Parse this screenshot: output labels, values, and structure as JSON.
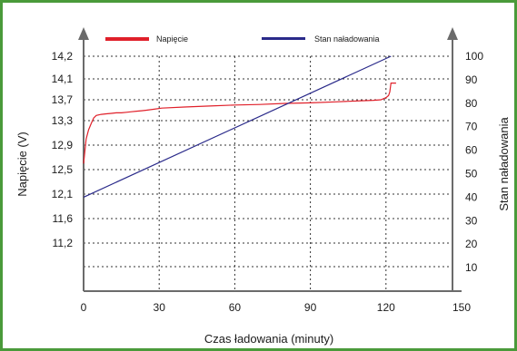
{
  "chart_data": {
    "type": "line",
    "xlabel": "Czas ładowania (minuty)",
    "ylabel_left": "Napięcie (V)",
    "ylabel_right": "Stan naładowania",
    "x_ticks": [
      "0",
      "30",
      "60",
      "90",
      "120",
      "150"
    ],
    "xlim": [
      0,
      150
    ],
    "y_left_ticks": [
      "11,2",
      "11,6",
      "12,1",
      "12,5",
      "12,9",
      "13,3",
      "13,7",
      "14,1",
      "14,2"
    ],
    "y_right_ticks": [
      "10",
      "20",
      "30",
      "40",
      "50",
      "60",
      "70",
      "80",
      "90",
      "100"
    ],
    "ylim_right": [
      0,
      100
    ],
    "grid": "dotted",
    "legend_position": "top",
    "series": [
      {
        "name": "Napięcie",
        "color": "#e0202a",
        "axis": "left",
        "x": [
          0,
          1,
          2,
          3,
          4,
          5,
          7,
          9,
          11,
          13,
          15,
          17,
          19,
          21,
          23,
          25,
          28,
          31,
          40,
          50,
          60,
          70,
          80,
          90,
          100,
          110,
          115,
          118,
          119,
          120,
          121,
          121.5,
          122,
          122.5,
          124
        ],
        "y": [
          12.6,
          13.0,
          13.15,
          13.25,
          13.35,
          13.4,
          13.42,
          13.43,
          13.44,
          13.45,
          13.45,
          13.46,
          13.47,
          13.48,
          13.49,
          13.5,
          13.52,
          13.54,
          13.56,
          13.58,
          13.6,
          13.61,
          13.63,
          13.64,
          13.66,
          13.68,
          13.69,
          13.7,
          13.72,
          13.74,
          13.78,
          13.85,
          14.02,
          14.02,
          14.02
        ]
      },
      {
        "name": "Stan naładowania",
        "color": "#2a2a8a",
        "axis": "right",
        "x": [
          0,
          122
        ],
        "y": [
          40,
          100
        ]
      }
    ]
  }
}
